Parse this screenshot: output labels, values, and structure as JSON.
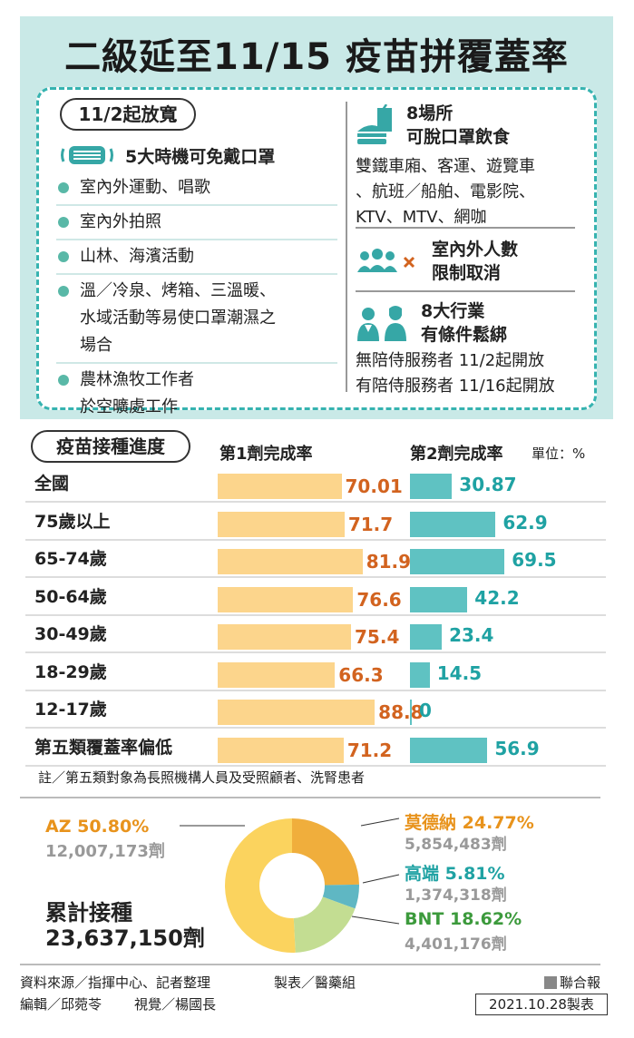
{
  "title": "二級延至11/15 疫苗拼覆蓋率",
  "release": {
    "pill": "11/2起放寬",
    "mask_header": "5大時機可免戴口罩",
    "items": [
      {
        "lines": [
          "室內外運動、唱歌"
        ]
      },
      {
        "lines": [
          "室內外拍照"
        ]
      },
      {
        "lines": [
          "山林、海濱活動"
        ]
      },
      {
        "lines": [
          "溫／冷泉、烤箱、三溫暖、",
          "水域活動等易使口罩潮濕之",
          "場合"
        ]
      },
      {
        "lines": [
          "農林漁牧工作者",
          "於空曠處工作"
        ]
      }
    ]
  },
  "right": {
    "eat_title_1": "8場所",
    "eat_title_2": "可脫口罩飲食",
    "eat_lines": [
      "雙鐵車廂、客運、遊覽車",
      "、航班／船舶、電影院、",
      "KTV、MTV、網咖"
    ],
    "people_title_1": "室內外人數",
    "people_title_2": "限制取消",
    "industry_title_1": "8大行業",
    "industry_title_2": "有條件鬆綁",
    "industry_lines": [
      "無陪侍服務者 11/2起開放",
      "有陪侍服務者 11/16起開放"
    ]
  },
  "progress": {
    "title": "疫苗接種進度",
    "col1": "第1劑完成率",
    "col2": "第2劑完成率",
    "unit": "單位：%",
    "note": "註／第五類對象為長照機構人員及受照顧者、洗腎患者"
  },
  "chart_data": [
    {
      "type": "bar",
      "categories": [
        "全國",
        "75歲以上",
        "65-74歲",
        "50-64歲",
        "30-49歲",
        "18-29歲",
        "12-17歲",
        "第五類覆蓋率偏低"
      ],
      "series": [
        {
          "name": "第1劑完成率",
          "values": [
            70.01,
            71.7,
            81.9,
            76.6,
            75.4,
            66.3,
            88.8,
            71.2
          ],
          "labels": [
            "70.01",
            "71.7",
            "81.9",
            "76.6",
            "75.4",
            "66.3",
            "88.8",
            "71.2"
          ],
          "color": "#fcd58c"
        },
        {
          "name": "第2劑完成率",
          "values": [
            30.87,
            62.9,
            69.5,
            42.2,
            23.4,
            14.5,
            0,
            56.9
          ],
          "labels": [
            "30.87",
            "62.9",
            "69.5",
            "42.2",
            "23.4",
            "14.5",
            "0",
            "56.9"
          ],
          "color": "#5fc2c2"
        }
      ],
      "ylim": [
        0,
        100
      ]
    },
    {
      "type": "pie",
      "title": "累計接種",
      "total": "23,637,150劑",
      "slices": [
        {
          "name": "AZ",
          "percent": 50.8,
          "pct_label": "50.80%",
          "doses": "12,007,173劑",
          "color": "#fbd35e",
          "text_color": "#e8931c"
        },
        {
          "name": "莫德納",
          "percent": 24.77,
          "pct_label": "24.77%",
          "doses": "5,854,483劑",
          "color": "#f0ae3c",
          "text_color": "#e8931c"
        },
        {
          "name": "高端",
          "percent": 5.81,
          "pct_label": "5.81%",
          "doses": "1,374,318劑",
          "color": "#5fb7c3",
          "text_color": "#1fa2a3"
        },
        {
          "name": "BNT",
          "percent": 18.62,
          "pct_label": "18.62%",
          "doses": "4,401,176劑",
          "color": "#c3dd92",
          "text_color": "#3c9a3c"
        }
      ]
    }
  ],
  "footer": {
    "source": "資料來源／指揮中心、記者整理",
    "made": "製表／醫藥組",
    "editor": "編輯／邱菀苓",
    "visual": "視覺／楊國長",
    "paper": "聯合報",
    "date": "2021.10.28製表"
  }
}
